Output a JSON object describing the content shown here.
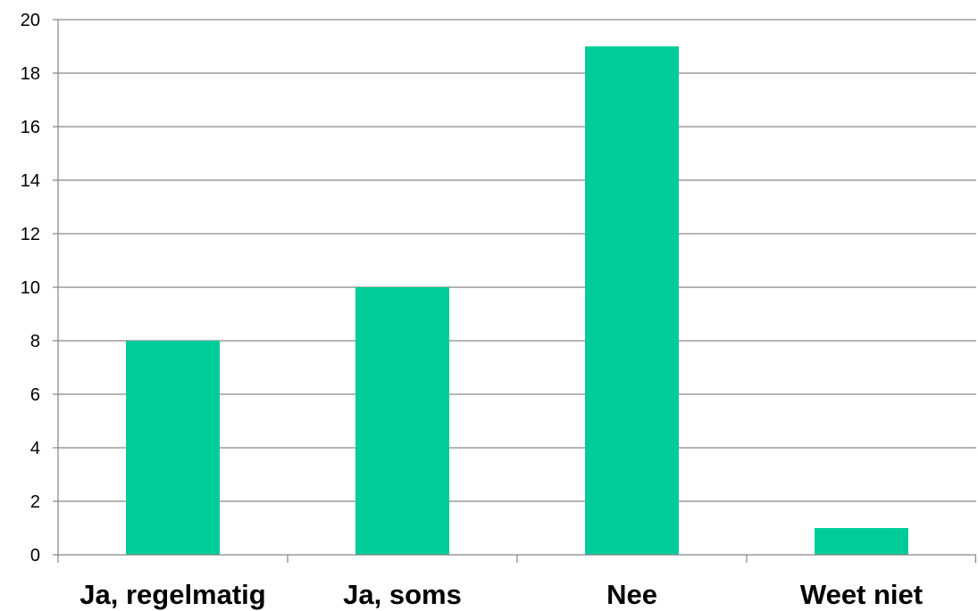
{
  "chart_data": {
    "type": "bar",
    "categories": [
      "Ja, regelmatig",
      "Ja, soms",
      "Nee",
      "Weet niet"
    ],
    "values": [
      8,
      10,
      19,
      1
    ],
    "title": "",
    "xlabel": "",
    "ylabel": "",
    "ylim": [
      0,
      20
    ],
    "ytick_step": 2,
    "grid": true,
    "legend": "none",
    "colors": {
      "bar": "#00CC99",
      "grid": "#868686",
      "axis": "#868686"
    }
  }
}
